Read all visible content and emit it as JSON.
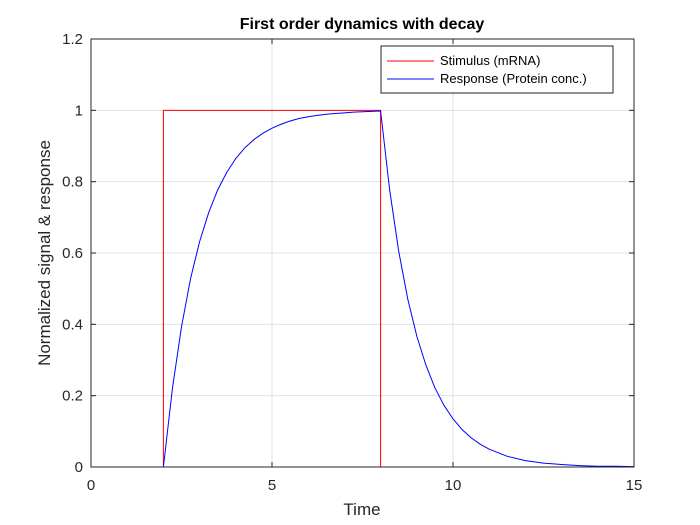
{
  "chart_data": {
    "type": "line",
    "title": "First order dynamics with decay",
    "xlabel": "Time",
    "ylabel": "Normalized signal & response",
    "xlim": [
      0,
      15
    ],
    "ylim": [
      0,
      1.2
    ],
    "xticks": [
      0,
      5,
      10,
      15
    ],
    "yticks": [
      0,
      0.2,
      0.4,
      0.6,
      0.8,
      1,
      1.2
    ],
    "xtick_labels": [
      "0",
      "5",
      "10",
      "15"
    ],
    "ytick_labels": [
      "0",
      "0.2",
      "0.4",
      "0.6",
      "0.8",
      "1",
      "1.2"
    ],
    "grid": true,
    "legend_position": "top-right",
    "series": [
      {
        "name": "Stimulus (mRNA)",
        "color": "#ff0000",
        "x": [
          0,
          2,
          2,
          8,
          8,
          15
        ],
        "y": [
          0,
          0,
          1,
          1,
          0,
          0
        ]
      },
      {
        "name": "Response (Protein conc.)",
        "color": "#0000ff",
        "x": [
          0,
          2,
          2.25,
          2.5,
          2.75,
          3,
          3.25,
          3.5,
          3.75,
          4,
          4.25,
          4.5,
          4.75,
          5,
          5.25,
          5.5,
          5.75,
          6,
          6.25,
          6.5,
          6.75,
          7,
          7.25,
          7.5,
          7.75,
          8,
          8.25,
          8.5,
          8.75,
          9,
          9.25,
          9.5,
          9.75,
          10,
          10.25,
          10.5,
          10.75,
          11,
          11.5,
          12,
          12.5,
          13,
          13.5,
          14,
          14.5,
          15
        ],
        "y": [
          0,
          0,
          0.221,
          0.393,
          0.528,
          0.632,
          0.713,
          0.777,
          0.826,
          0.865,
          0.895,
          0.918,
          0.936,
          0.95,
          0.961,
          0.97,
          0.977,
          0.982,
          0.986,
          0.989,
          0.991,
          0.993,
          0.995,
          0.996,
          0.997,
          0.998,
          0.777,
          0.605,
          0.471,
          0.367,
          0.286,
          0.222,
          0.173,
          0.135,
          0.105,
          0.082,
          0.064,
          0.05,
          0.03,
          0.018,
          0.011,
          0.007,
          0.004,
          0.002,
          0.002,
          0.001
        ]
      }
    ]
  }
}
